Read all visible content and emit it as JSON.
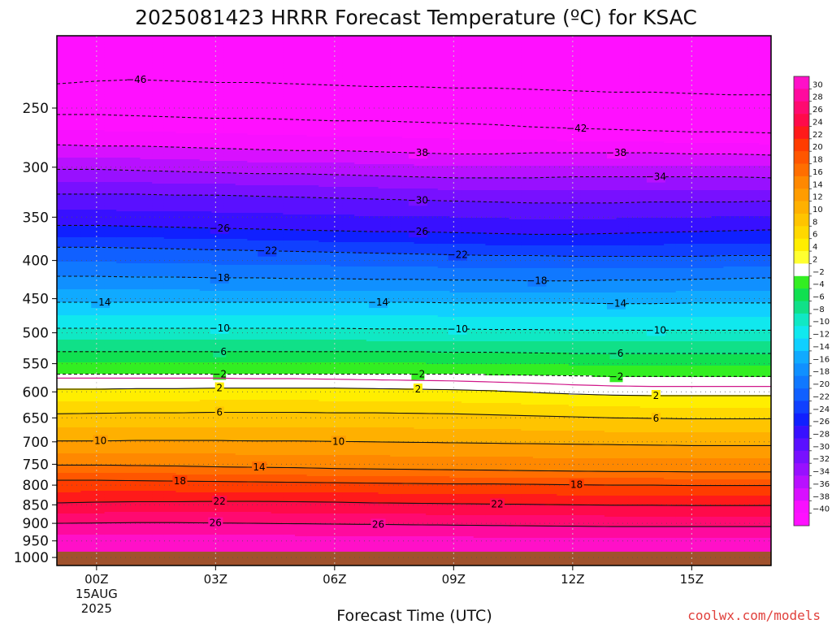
{
  "chart_data": {
    "type": "heatmap",
    "title": "2025081423 HRRR Forecast Temperature (ºC) for KSAC",
    "xlabel": "Forecast Time (UTC)",
    "ylabel": "",
    "y_scale": "log-pressure",
    "y_reversed": true,
    "ylim": [
      1025,
      200
    ],
    "y_ticks": [
      250,
      300,
      350,
      400,
      450,
      500,
      550,
      600,
      650,
      700,
      750,
      800,
      850,
      900,
      950,
      1000
    ],
    "x_ticks": [
      {
        "hour": 1,
        "label": "00Z",
        "sub1": "15AUG",
        "sub2": "2025"
      },
      {
        "hour": 4,
        "label": "03Z"
      },
      {
        "hour": 7,
        "label": "06Z"
      },
      {
        "hour": 10,
        "label": "09Z"
      },
      {
        "hour": 13,
        "label": "12Z"
      },
      {
        "hour": 16,
        "label": "15Z"
      }
    ],
    "xlim": [
      0,
      18
    ],
    "grid": true,
    "ground_color": "#a0522d",
    "contours": [
      {
        "value": -46,
        "label": "46",
        "style": "dashed",
        "p": [
          232,
          230,
          229,
          230,
          231,
          231,
          232,
          233,
          234,
          234,
          235,
          235,
          236,
          237,
          238,
          238,
          239,
          240,
          240
        ],
        "labels_at": [
          2.0
        ]
      },
      {
        "value": -42,
        "label": "42",
        "style": "dashed",
        "p": [
          255,
          255,
          256,
          257,
          258,
          258,
          259,
          260,
          260,
          261,
          262,
          263,
          265,
          266,
          267,
          268,
          269,
          269,
          270
        ],
        "labels_at": [
          13.1
        ]
      },
      {
        "value": -38,
        "label": "38",
        "style": "dashed",
        "p": [
          280,
          281,
          281,
          282,
          283,
          284,
          285,
          285,
          286,
          287,
          288,
          288,
          287,
          287,
          287,
          287,
          288,
          288,
          289
        ],
        "labels_at": [
          9.1,
          14.1
        ]
      },
      {
        "value": -34,
        "label": "34",
        "style": "dashed",
        "p": [
          302,
          302,
          303,
          304,
          305,
          306,
          306,
          307,
          308,
          309,
          310,
          310,
          310,
          309,
          309,
          309,
          309,
          309,
          310
        ],
        "labels_at": [
          15.1
        ]
      },
      {
        "value": -30,
        "label": "30",
        "style": "dashed",
        "p": [
          326,
          326,
          326,
          327,
          327,
          328,
          329,
          330,
          331,
          332,
          333,
          334,
          335,
          335,
          335,
          334,
          334,
          334,
          333
        ],
        "labels_at": [
          9.1
        ]
      },
      {
        "value": -26,
        "label": "26",
        "style": "dashed",
        "p": [
          359,
          359,
          360,
          361,
          362,
          363,
          364,
          365,
          366,
          366,
          367,
          368,
          369,
          369,
          368,
          367,
          366,
          365,
          364
        ],
        "labels_at": [
          4.1,
          9.1
        ]
      },
      {
        "value": -22,
        "label": "22",
        "style": "dashed",
        "p": [
          384,
          384,
          385,
          386,
          387,
          388,
          389,
          390,
          391,
          392,
          393,
          394,
          394,
          395,
          395,
          395,
          395,
          394,
          394
        ],
        "labels_at": [
          5.3,
          10.1
        ]
      },
      {
        "value": -18,
        "label": "18",
        "style": "dashed",
        "p": [
          420,
          420,
          421,
          421,
          422,
          422,
          423,
          423,
          424,
          424,
          425,
          425,
          426,
          426,
          425,
          425,
          424,
          423,
          422
        ],
        "labels_at": [
          4.1,
          12.1
        ]
      },
      {
        "value": -14,
        "label": "14",
        "style": "dashed",
        "p": [
          455,
          455,
          455,
          455,
          455,
          455,
          455,
          455,
          455,
          455,
          456,
          456,
          456,
          456,
          457,
          457,
          456,
          456,
          456
        ],
        "labels_at": [
          1.1,
          8.1,
          14.1
        ]
      },
      {
        "value": -10,
        "label": "10",
        "style": "dashed",
        "p": [
          493,
          493,
          493,
          493,
          493,
          493,
          493,
          493,
          494,
          494,
          494,
          495,
          495,
          496,
          496,
          496,
          496,
          496,
          496
        ],
        "labels_at": [
          4.1,
          10.1,
          15.1
        ]
      },
      {
        "value": -6,
        "label": "6",
        "style": "dashed",
        "p": [
          530,
          530,
          530,
          530,
          530,
          530,
          530,
          530,
          530,
          530,
          531,
          531,
          532,
          533,
          533,
          533,
          533,
          533,
          533
        ],
        "labels_at": [
          4.1,
          14.1
        ]
      },
      {
        "value": -2,
        "label": "2",
        "style": "dashed",
        "p": [
          568,
          568,
          568,
          568,
          568,
          568,
          568,
          568,
          568,
          568,
          568,
          569,
          570,
          571,
          572,
          572,
          572,
          572,
          572
        ],
        "labels_at": [
          4.1,
          9.1,
          14.1
        ]
      },
      {
        "value": 0,
        "label": "",
        "style": "magenta",
        "p": [
          575,
          575,
          575,
          575,
          575,
          576,
          576,
          577,
          578,
          579,
          580,
          582,
          584,
          587,
          589,
          590,
          590,
          590,
          590
        ],
        "labels_at": []
      },
      {
        "value": 2,
        "label": "2",
        "style": "solid",
        "p": [
          595,
          595,
          594,
          594,
          593,
          593,
          593,
          593,
          594,
          595,
          596,
          598,
          601,
          604,
          606,
          607,
          607,
          607,
          607
        ],
        "labels_at": [
          4.1,
          9.1,
          15.1
        ]
      },
      {
        "value": 6,
        "label": "6",
        "style": "solid",
        "p": [
          642,
          641,
          640,
          640,
          639,
          639,
          639,
          640,
          640,
          641,
          642,
          644,
          646,
          648,
          650,
          651,
          652,
          652,
          652
        ],
        "labels_at": [
          4.1,
          15.1
        ]
      },
      {
        "value": 10,
        "label": "10",
        "style": "solid",
        "p": [
          698,
          698,
          697,
          697,
          697,
          698,
          698,
          699,
          700,
          701,
          702,
          703,
          704,
          705,
          706,
          707,
          708,
          708,
          708
        ],
        "labels_at": [
          1.1,
          7.1
        ]
      },
      {
        "value": 14,
        "label": "14",
        "style": "solid",
        "p": [
          752,
          752,
          753,
          754,
          756,
          757,
          758,
          760,
          761,
          762,
          763,
          764,
          765,
          766,
          767,
          767,
          768,
          768,
          768
        ],
        "labels_at": [
          5.1
        ]
      },
      {
        "value": 18,
        "label": "18",
        "style": "solid",
        "p": [
          788,
          788,
          789,
          790,
          791,
          792,
          793,
          794,
          795,
          796,
          797,
          797,
          798,
          799,
          800,
          800,
          801,
          801,
          801
        ],
        "labels_at": [
          3.1,
          13.1
        ]
      },
      {
        "value": 22,
        "label": "22",
        "style": "solid",
        "p": [
          845,
          843,
          842,
          842,
          841,
          841,
          842,
          843,
          845,
          846,
          847,
          848,
          849,
          850,
          851,
          851,
          852,
          852,
          852
        ],
        "labels_at": [
          4.1,
          11.1
        ]
      },
      {
        "value": 26,
        "label": "26",
        "style": "solid",
        "p": [
          900,
          899,
          898,
          898,
          899,
          900,
          901,
          902,
          903,
          904,
          905,
          906,
          907,
          908,
          909,
          909,
          909,
          909,
          909
        ],
        "labels_at": [
          4.0,
          8.1
        ]
      }
    ],
    "colorbar": {
      "labels": [
        30,
        28,
        26,
        24,
        22,
        20,
        18,
        16,
        14,
        12,
        10,
        8,
        6,
        4,
        2,
        -2,
        -4,
        -6,
        -8,
        -10,
        -12,
        -14,
        -16,
        -18,
        -20,
        -22,
        -24,
        -26,
        -28,
        -30,
        -32,
        -34,
        -36,
        -38,
        -40
      ],
      "colors": [
        "#ff10c8",
        "#ff0a9e",
        "#ff0a70",
        "#ff0a4a",
        "#ff1a1a",
        "#ff3c00",
        "#ff5600",
        "#ff6e00",
        "#ff8800",
        "#ff9c00",
        "#ffb000",
        "#ffc400",
        "#ffd800",
        "#ffee00",
        "#ffff30",
        "#ffffff",
        "#33ee22",
        "#10e050",
        "#10e088",
        "#10e8c4",
        "#10e8ee",
        "#10d0ff",
        "#10aaff",
        "#1090ff",
        "#1078ff",
        "#1060ff",
        "#1040ff",
        "#1020ff",
        "#3810ff",
        "#5a10ff",
        "#7810ff",
        "#9810ff",
        "#b810ff",
        "#d810ff",
        "#f810ff",
        "#ff10ff"
      ]
    }
  },
  "credit": "coolwx.com/models"
}
